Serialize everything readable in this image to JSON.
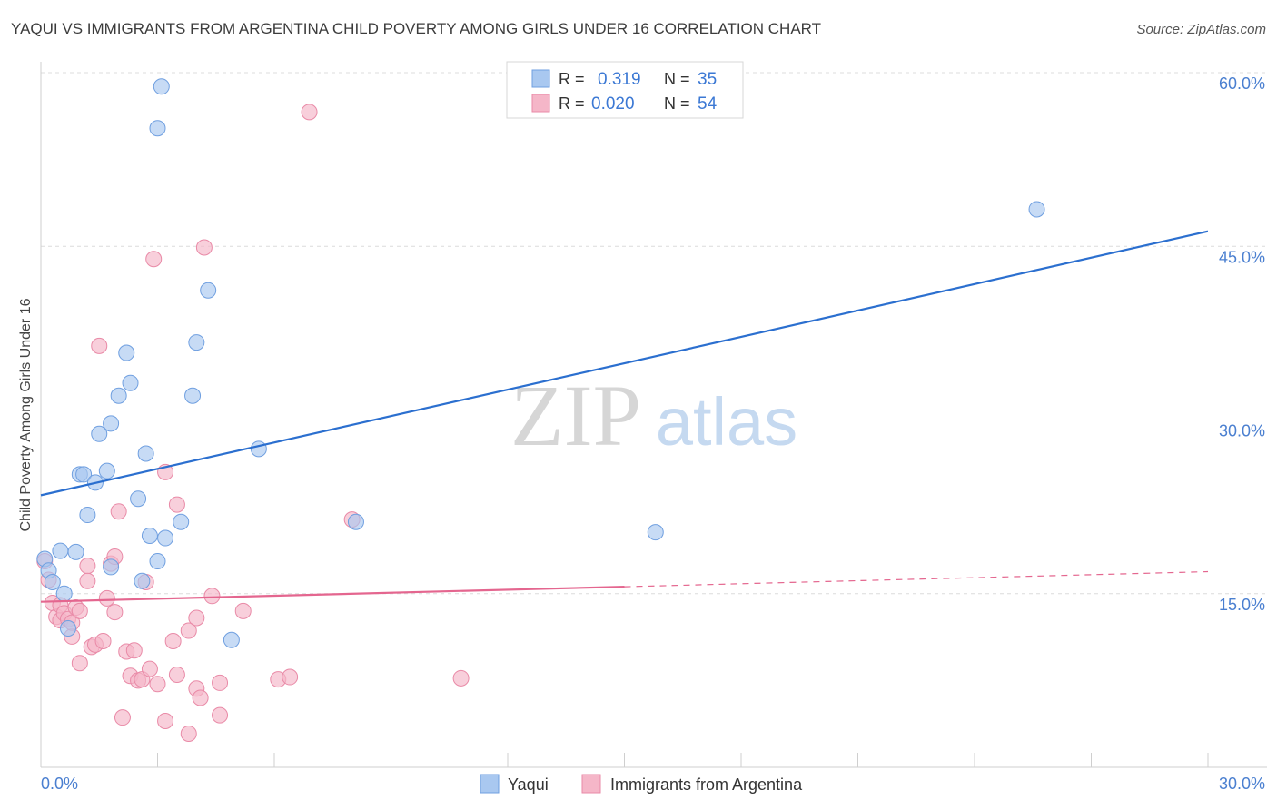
{
  "header": {
    "title": "YAQUI VS IMMIGRANTS FROM ARGENTINA CHILD POVERTY AMONG GIRLS UNDER 16 CORRELATION CHART",
    "source": "Source: ZipAtlas.com"
  },
  "watermark": {
    "zip": "ZIP",
    "atlas": "atlas"
  },
  "colors": {
    "blue_fill": "#a9c8f0",
    "blue_stroke": "#6f9fe0",
    "blue_line": "#2b6fcf",
    "pink_fill": "#f5b6c8",
    "pink_stroke": "#e98aa7",
    "pink_line": "#e4668f",
    "axis_text": "#4a7fd0",
    "grid": "#dcdcdc"
  },
  "chart_data": {
    "type": "scatter",
    "title": "YAQUI VS IMMIGRANTS FROM ARGENTINA CHILD POVERTY AMONG GIRLS UNDER 16 CORRELATION CHART",
    "xlabel": "",
    "ylabel": "Child Poverty Among Girls Under 16",
    "xlim": [
      0,
      30
    ],
    "ylim": [
      0,
      60
    ],
    "x_tick_labels": [
      "0.0%",
      "30.0%"
    ],
    "y_ticks": [
      15,
      30,
      45,
      60
    ],
    "y_tick_labels": [
      "15.0%",
      "30.0%",
      "45.0%",
      "60.0%"
    ],
    "legend": {
      "position": "top-center",
      "entries": [
        {
          "r_label": "R =",
          "r_value": "0.319",
          "n_label": "N =",
          "n_value": "35"
        },
        {
          "r_label": "R =",
          "r_value": "0.020",
          "n_label": "N =",
          "n_value": "54"
        }
      ]
    },
    "bottom_legend": [
      "Yaqui",
      "Immigrants from Argentina"
    ],
    "series": [
      {
        "name": "Yaqui",
        "r": 0.319,
        "n": 35,
        "trend": {
          "x": [
            0,
            30
          ],
          "y": [
            23.5,
            46.3
          ],
          "solid_until": 30
        },
        "points": [
          [
            0.1,
            18.0
          ],
          [
            0.2,
            17.0
          ],
          [
            0.3,
            16.0
          ],
          [
            0.5,
            18.7
          ],
          [
            0.6,
            15.0
          ],
          [
            0.7,
            12.0
          ],
          [
            0.9,
            18.6
          ],
          [
            1.0,
            25.3
          ],
          [
            1.1,
            25.3
          ],
          [
            1.2,
            21.8
          ],
          [
            1.4,
            24.6
          ],
          [
            1.5,
            28.8
          ],
          [
            1.7,
            25.6
          ],
          [
            1.8,
            29.7
          ],
          [
            1.8,
            17.3
          ],
          [
            2.0,
            32.1
          ],
          [
            2.2,
            35.8
          ],
          [
            2.3,
            33.2
          ],
          [
            2.5,
            23.2
          ],
          [
            2.6,
            16.1
          ],
          [
            2.7,
            27.1
          ],
          [
            2.8,
            20.0
          ],
          [
            3.0,
            55.2
          ],
          [
            3.0,
            17.8
          ],
          [
            3.1,
            58.8
          ],
          [
            3.2,
            19.8
          ],
          [
            3.6,
            21.2
          ],
          [
            3.9,
            32.1
          ],
          [
            4.0,
            36.7
          ],
          [
            4.3,
            41.2
          ],
          [
            4.9,
            11.0
          ],
          [
            5.6,
            27.5
          ],
          [
            8.1,
            21.2
          ],
          [
            15.8,
            20.3
          ],
          [
            25.6,
            48.2
          ]
        ]
      },
      {
        "name": "Immigrants from Argentina",
        "r": 0.02,
        "n": 54,
        "trend": {
          "x": [
            0,
            30
          ],
          "y": [
            14.3,
            16.9
          ],
          "solid_until": 15
        },
        "points": [
          [
            0.1,
            17.8
          ],
          [
            0.2,
            16.2
          ],
          [
            0.3,
            14.2
          ],
          [
            0.4,
            13.0
          ],
          [
            0.5,
            12.7
          ],
          [
            0.5,
            14.0
          ],
          [
            0.6,
            13.3
          ],
          [
            0.7,
            12.8
          ],
          [
            0.8,
            11.3
          ],
          [
            0.8,
            12.5
          ],
          [
            0.9,
            13.8
          ],
          [
            1.0,
            13.5
          ],
          [
            1.0,
            9.0
          ],
          [
            1.2,
            17.4
          ],
          [
            1.2,
            16.1
          ],
          [
            1.3,
            10.4
          ],
          [
            1.4,
            10.6
          ],
          [
            1.5,
            36.4
          ],
          [
            1.6,
            10.9
          ],
          [
            1.7,
            14.6
          ],
          [
            1.8,
            17.6
          ],
          [
            1.9,
            18.2
          ],
          [
            1.9,
            13.4
          ],
          [
            2.0,
            22.1
          ],
          [
            2.1,
            4.3
          ],
          [
            2.2,
            10.0
          ],
          [
            2.3,
            7.9
          ],
          [
            2.4,
            10.1
          ],
          [
            2.5,
            7.5
          ],
          [
            2.6,
            7.6
          ],
          [
            2.7,
            16.0
          ],
          [
            2.8,
            8.5
          ],
          [
            2.9,
            43.9
          ],
          [
            3.0,
            7.2
          ],
          [
            3.2,
            25.5
          ],
          [
            3.2,
            4.0
          ],
          [
            3.4,
            10.9
          ],
          [
            3.5,
            22.7
          ],
          [
            3.5,
            8.0
          ],
          [
            3.8,
            11.8
          ],
          [
            3.8,
            2.9
          ],
          [
            4.0,
            6.8
          ],
          [
            4.0,
            12.9
          ],
          [
            4.1,
            6.0
          ],
          [
            4.2,
            44.9
          ],
          [
            4.4,
            14.8
          ],
          [
            4.6,
            7.3
          ],
          [
            4.6,
            4.5
          ],
          [
            5.2,
            13.5
          ],
          [
            6.1,
            7.6
          ],
          [
            6.4,
            7.8
          ],
          [
            6.9,
            56.6
          ],
          [
            8.0,
            21.4
          ],
          [
            10.8,
            7.7
          ]
        ]
      }
    ]
  }
}
